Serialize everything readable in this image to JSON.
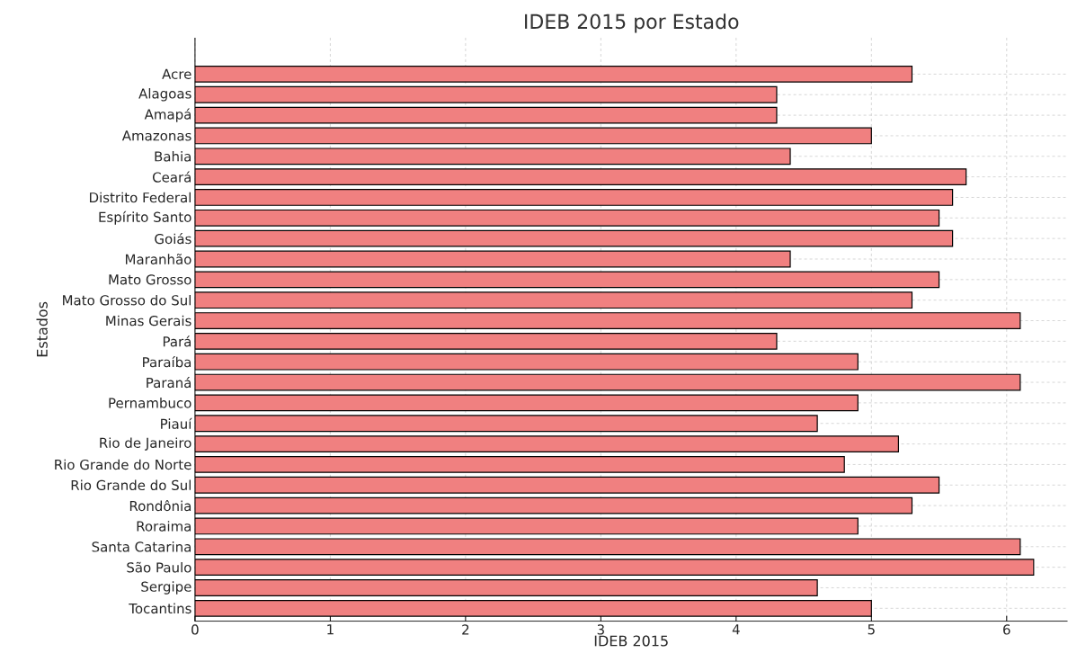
{
  "chart_data": {
    "type": "bar",
    "orientation": "horizontal",
    "title": "IDEB 2015 por Estado",
    "xlabel": "IDEB 2015",
    "ylabel": "Estados",
    "categories": [
      "Acre",
      "Alagoas",
      "Amapá",
      "Amazonas",
      "Bahia",
      "Ceará",
      "Distrito Federal",
      "Espírito Santo",
      "Goiás",
      "Maranhão",
      "Mato Grosso",
      "Mato Grosso do Sul",
      "Minas Gerais",
      "Pará",
      "Paraíba",
      "Paraná",
      "Pernambuco",
      "Piauí",
      "Rio de Janeiro",
      "Rio Grande do Norte",
      "Rio Grande do Sul",
      "Rondônia",
      "Roraima",
      "Santa Catarina",
      "São Paulo",
      "Sergipe",
      "Tocantins"
    ],
    "values": [
      5.3,
      4.3,
      4.3,
      5.0,
      4.4,
      5.7,
      5.6,
      5.5,
      5.6,
      4.4,
      5.5,
      5.3,
      6.1,
      4.3,
      4.9,
      6.1,
      4.9,
      4.6,
      5.2,
      4.8,
      5.5,
      5.3,
      4.9,
      6.1,
      6.2,
      4.6,
      5.0
    ],
    "color": "#f08080",
    "xlim": [
      0,
      6.45
    ],
    "xticks": [
      0,
      1,
      2,
      3,
      4,
      5,
      6
    ],
    "grid": true
  }
}
